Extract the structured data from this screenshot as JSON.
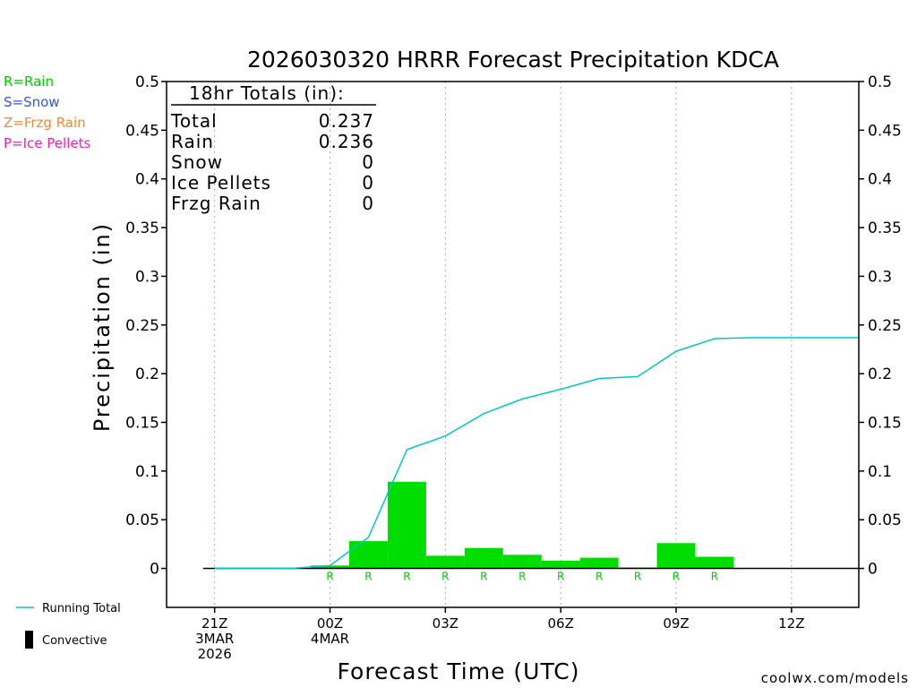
{
  "chart_data": {
    "type": "bar",
    "title": "2026030320 HRRR Forecast Precipitation KDCA",
    "xlabel": "Forecast Time (UTC)",
    "ylabel": "Precipitation (in)",
    "ylim": [
      -0.04,
      0.5
    ],
    "xlim": [
      -1.25,
      16.75
    ],
    "y_ticks": [
      0,
      0.05,
      0.1,
      0.15,
      0.2,
      0.25,
      0.3,
      0.35,
      0.4,
      0.45,
      0.5
    ],
    "y_tick_labels": [
      "0",
      "0.05",
      "0.1",
      "0.15",
      "0.2",
      "0.25",
      "0.3",
      "0.35",
      "0.4",
      "0.45",
      "0.5"
    ],
    "x_ticks": [
      {
        "x": 0,
        "lines": [
          "21Z",
          "3MAR",
          "2026"
        ]
      },
      {
        "x": 3,
        "lines": [
          "00Z",
          "4MAR"
        ]
      },
      {
        "x": 6,
        "lines": [
          "03Z"
        ]
      },
      {
        "x": 9,
        "lines": [
          "06Z"
        ]
      },
      {
        "x": 12,
        "lines": [
          "09Z"
        ]
      },
      {
        "x": 15,
        "lines": [
          "12Z"
        ]
      }
    ],
    "vertical_grid_at": [
      0,
      3,
      6,
      9,
      12,
      15
    ],
    "grid": true,
    "series": [
      {
        "name": "Rain",
        "kind": "bar",
        "color": "#00dd00",
        "x": [
          3,
          4,
          5,
          6,
          7,
          8,
          9,
          10,
          11,
          12,
          13
        ],
        "values": [
          0.003,
          0.028,
          0.089,
          0.013,
          0.021,
          0.014,
          0.008,
          0.011,
          0.001,
          0.026,
          0.012
        ],
        "markers": [
          "R",
          "R",
          "R",
          "R",
          "R",
          "R",
          "R",
          "R",
          "R",
          "R",
          "R"
        ]
      },
      {
        "name": "Running Total",
        "kind": "line",
        "color": "#00c8c8",
        "x": [
          0,
          1,
          2,
          3,
          4,
          5,
          6,
          7,
          8,
          9,
          10,
          11,
          12,
          13,
          14,
          15,
          16,
          16.75
        ],
        "values": [
          0,
          0,
          0,
          0.003,
          0.032,
          0.122,
          0.136,
          0.159,
          0.174,
          0.184,
          0.195,
          0.197,
          0.223,
          0.236,
          0.237,
          0.237,
          0.237,
          0.237
        ]
      }
    ],
    "totals_box": {
      "header": "18hr Totals (in):",
      "rows": [
        {
          "label": "Total",
          "value": "0.237"
        },
        {
          "label": "Rain",
          "value": "0.236"
        },
        {
          "label": "Snow",
          "value": "0"
        },
        {
          "label": "Ice Pellets",
          "value": "0"
        },
        {
          "label": "Frzg Rain",
          "value": "0"
        }
      ]
    },
    "legend_top": [
      {
        "text": "R=Rain",
        "color": "#00cc00"
      },
      {
        "text": "S=Snow",
        "color": "#3355ee"
      },
      {
        "text": "Z=Frzg Rain",
        "color": "#ee8833"
      },
      {
        "text": "P=Ice Pellets",
        "color": "#ee22aa"
      }
    ],
    "legend_bottom": [
      {
        "text": "Running Total",
        "color": "#00c8c8",
        "symbol": "line"
      },
      {
        "text": "Convective",
        "color": "#000000",
        "symbol": "bar"
      }
    ],
    "credit": "coolwx.com/models",
    "credit_color": "#dd0000"
  }
}
